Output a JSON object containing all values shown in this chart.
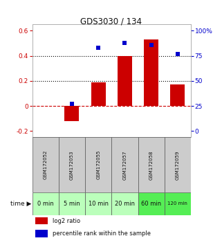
{
  "title": "GDS3030 / 134",
  "samples": [
    "GSM172052",
    "GSM172053",
    "GSM172055",
    "GSM172057",
    "GSM172058",
    "GSM172059"
  ],
  "time_labels": [
    "0 min",
    "5 min",
    "10 min",
    "20 min",
    "60 min",
    "120 min"
  ],
  "log2_ratio": [
    0.0,
    -0.12,
    0.19,
    0.4,
    0.53,
    0.17
  ],
  "percentile_values": [
    null,
    27,
    83,
    88,
    86,
    77
  ],
  "ylim_left": [
    -0.25,
    0.65
  ],
  "ylim_right": [
    -9.615,
    25
  ],
  "yticks_left": [
    -0.2,
    0.0,
    0.2,
    0.4,
    0.6
  ],
  "yticks_right_vals": [
    0,
    25,
    50,
    75,
    100
  ],
  "ytick_labels_left": [
    "-0.2",
    "0",
    "0.2",
    "0.4",
    "0.6"
  ],
  "ytick_labels_right": [
    "0",
    "25",
    "50",
    "75",
    "100%"
  ],
  "bar_color": "#cc0000",
  "dot_color": "#0000cc",
  "zero_line_color": "#cc0000",
  "bg_color_plot": "#ffffff",
  "bg_color_gsm": "#cccccc",
  "bg_color_time_light": "#bbffbb",
  "bg_color_time_dark": "#55ee55",
  "bar_width": 0.55,
  "dot_size": 25
}
